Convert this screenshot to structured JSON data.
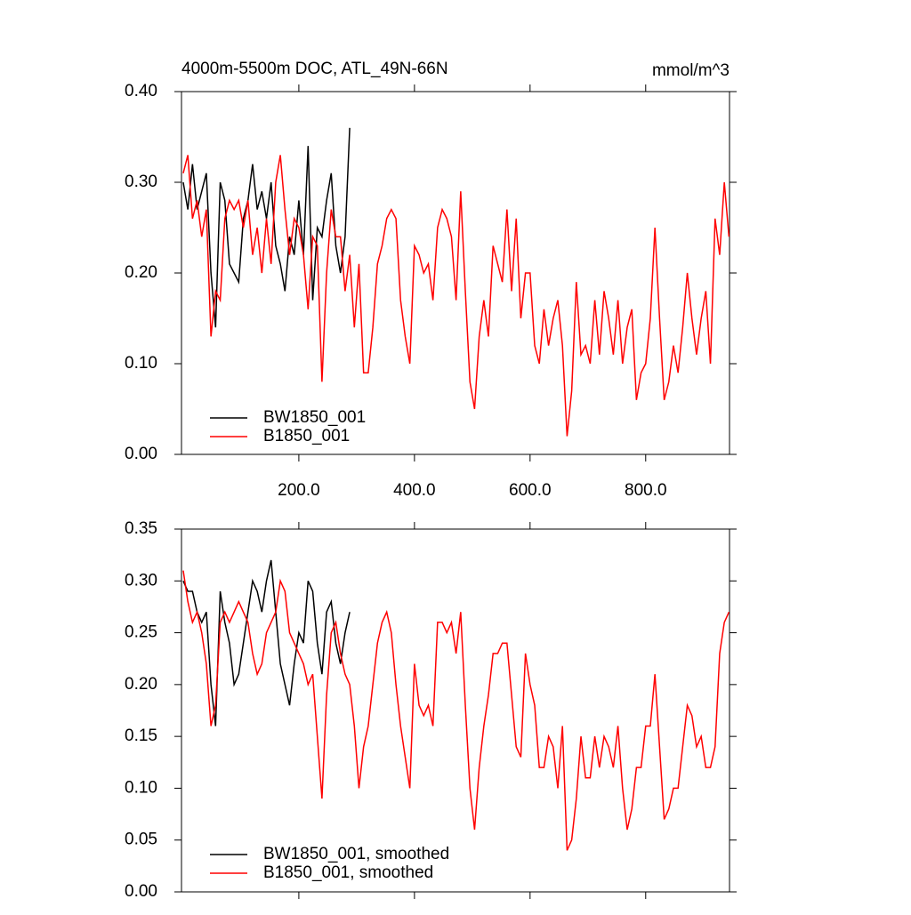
{
  "chart_data": [
    {
      "type": "line",
      "title": "4000m-5500m DOC, ATL_49N-66N",
      "units": "mmol/m^3",
      "xlim": [
        -3,
        945
      ],
      "ylim": [
        0,
        0.4
      ],
      "xticks": [
        {
          "value": 200,
          "label": "200.0"
        },
        {
          "value": 400,
          "label": "400.0"
        },
        {
          "value": 600,
          "label": "600.0"
        },
        {
          "value": 800,
          "label": "800.0"
        }
      ],
      "yticks": [
        {
          "value": 0,
          "label": "0.00"
        },
        {
          "value": 0.1,
          "label": "0.10"
        },
        {
          "value": 0.2,
          "label": "0.20"
        },
        {
          "value": 0.3,
          "label": "0.30"
        },
        {
          "value": 0.4,
          "label": "0.40"
        }
      ],
      "series": [
        {
          "name": "BW1850_001",
          "color": "#000000",
          "x": [
            0,
            8,
            16,
            24,
            32,
            40,
            48,
            56,
            64,
            72,
            80,
            88,
            96,
            104,
            112,
            120,
            128,
            136,
            144,
            152,
            160,
            168,
            176,
            184,
            192,
            200,
            208,
            216,
            224,
            232,
            240,
            248,
            256,
            264,
            272,
            280,
            288
          ],
          "values": [
            0.3,
            0.27,
            0.32,
            0.27,
            0.29,
            0.31,
            0.2,
            0.14,
            0.3,
            0.28,
            0.21,
            0.2,
            0.19,
            0.26,
            0.28,
            0.32,
            0.27,
            0.29,
            0.26,
            0.3,
            0.23,
            0.21,
            0.18,
            0.24,
            0.22,
            0.28,
            0.22,
            0.34,
            0.17,
            0.25,
            0.24,
            0.28,
            0.31,
            0.23,
            0.2,
            0.24,
            0.36
          ]
        },
        {
          "name": "B1850_001",
          "color": "#ff0000",
          "x": [
            0,
            8,
            16,
            24,
            32,
            40,
            48,
            56,
            64,
            72,
            80,
            88,
            96,
            104,
            112,
            120,
            128,
            136,
            144,
            152,
            160,
            168,
            176,
            184,
            192,
            200,
            208,
            216,
            224,
            232,
            240,
            248,
            256,
            264,
            272,
            280,
            288,
            296,
            304,
            312,
            320,
            328,
            336,
            344,
            352,
            360,
            368,
            376,
            384,
            392,
            400,
            408,
            416,
            424,
            432,
            440,
            448,
            456,
            464,
            472,
            480,
            488,
            496,
            504,
            512,
            520,
            528,
            536,
            544,
            552,
            560,
            568,
            576,
            584,
            592,
            600,
            608,
            616,
            624,
            632,
            640,
            648,
            656,
            664,
            672,
            680,
            688,
            696,
            704,
            712,
            720,
            728,
            736,
            744,
            752,
            760,
            768,
            776,
            784,
            792,
            800,
            808,
            816,
            824,
            832,
            840,
            848,
            856,
            864,
            872,
            880,
            888,
            896,
            904,
            912,
            920,
            928,
            936,
            944
          ],
          "values": [
            0.31,
            0.33,
            0.26,
            0.28,
            0.24,
            0.27,
            0.13,
            0.18,
            0.17,
            0.26,
            0.28,
            0.27,
            0.28,
            0.25,
            0.28,
            0.22,
            0.25,
            0.2,
            0.26,
            0.21,
            0.3,
            0.33,
            0.27,
            0.22,
            0.26,
            0.25,
            0.22,
            0.16,
            0.24,
            0.23,
            0.08,
            0.2,
            0.27,
            0.24,
            0.24,
            0.18,
            0.22,
            0.14,
            0.21,
            0.09,
            0.09,
            0.14,
            0.21,
            0.23,
            0.26,
            0.27,
            0.26,
            0.17,
            0.13,
            0.1,
            0.23,
            0.22,
            0.2,
            0.21,
            0.17,
            0.25,
            0.27,
            0.26,
            0.24,
            0.17,
            0.29,
            0.18,
            0.08,
            0.05,
            0.13,
            0.17,
            0.13,
            0.23,
            0.21,
            0.19,
            0.27,
            0.18,
            0.26,
            0.15,
            0.2,
            0.2,
            0.12,
            0.1,
            0.16,
            0.12,
            0.15,
            0.17,
            0.12,
            0.02,
            0.07,
            0.19,
            0.11,
            0.12,
            0.1,
            0.17,
            0.11,
            0.18,
            0.15,
            0.11,
            0.17,
            0.1,
            0.14,
            0.16,
            0.06,
            0.09,
            0.1,
            0.15,
            0.25,
            0.15,
            0.06,
            0.08,
            0.12,
            0.09,
            0.14,
            0.2,
            0.15,
            0.11,
            0.15,
            0.18,
            0.1,
            0.26,
            0.22,
            0.3,
            0.24
          ]
        }
      ]
    },
    {
      "type": "line",
      "xlim": [
        -3,
        945
      ],
      "ylim": [
        0,
        0.35
      ],
      "xticks": [
        200,
        400,
        600,
        800
      ],
      "yticks": [
        {
          "value": 0,
          "label": "0.00"
        },
        {
          "value": 0.05,
          "label": "0.05"
        },
        {
          "value": 0.1,
          "label": "0.10"
        },
        {
          "value": 0.15,
          "label": "0.15"
        },
        {
          "value": 0.2,
          "label": "0.20"
        },
        {
          "value": 0.25,
          "label": "0.25"
        },
        {
          "value": 0.3,
          "label": "0.30"
        },
        {
          "value": 0.35,
          "label": "0.35"
        }
      ],
      "series": [
        {
          "name": "BW1850_001, smoothed",
          "color": "#000000",
          "x": [
            0,
            8,
            16,
            24,
            32,
            40,
            48,
            56,
            64,
            72,
            80,
            88,
            96,
            104,
            112,
            120,
            128,
            136,
            144,
            152,
            160,
            168,
            176,
            184,
            192,
            200,
            208,
            216,
            224,
            232,
            240,
            248,
            256,
            264,
            272,
            280,
            288
          ],
          "values": [
            0.3,
            0.29,
            0.29,
            0.27,
            0.26,
            0.27,
            0.2,
            0.16,
            0.29,
            0.26,
            0.24,
            0.2,
            0.21,
            0.24,
            0.27,
            0.3,
            0.29,
            0.27,
            0.3,
            0.32,
            0.27,
            0.22,
            0.2,
            0.18,
            0.22,
            0.25,
            0.24,
            0.3,
            0.29,
            0.24,
            0.21,
            0.27,
            0.28,
            0.24,
            0.22,
            0.25,
            0.27
          ]
        },
        {
          "name": "B1850_001, smoothed",
          "color": "#ff0000",
          "x": [
            0,
            8,
            16,
            24,
            32,
            40,
            48,
            56,
            64,
            72,
            80,
            88,
            96,
            104,
            112,
            120,
            128,
            136,
            144,
            152,
            160,
            168,
            176,
            184,
            192,
            200,
            208,
            216,
            224,
            232,
            240,
            248,
            256,
            264,
            272,
            280,
            288,
            296,
            304,
            312,
            320,
            328,
            336,
            344,
            352,
            360,
            368,
            376,
            384,
            392,
            400,
            408,
            416,
            424,
            432,
            440,
            448,
            456,
            464,
            472,
            480,
            488,
            496,
            504,
            512,
            520,
            528,
            536,
            544,
            552,
            560,
            568,
            576,
            584,
            592,
            600,
            608,
            616,
            624,
            632,
            640,
            648,
            656,
            664,
            672,
            680,
            688,
            696,
            704,
            712,
            720,
            728,
            736,
            744,
            752,
            760,
            768,
            776,
            784,
            792,
            800,
            808,
            816,
            824,
            832,
            840,
            848,
            856,
            864,
            872,
            880,
            888,
            896,
            904,
            912,
            920,
            928,
            936,
            944
          ],
          "values": [
            0.31,
            0.28,
            0.26,
            0.27,
            0.25,
            0.22,
            0.16,
            0.18,
            0.26,
            0.27,
            0.26,
            0.27,
            0.28,
            0.27,
            0.26,
            0.23,
            0.21,
            0.22,
            0.25,
            0.26,
            0.27,
            0.3,
            0.29,
            0.25,
            0.24,
            0.23,
            0.22,
            0.2,
            0.21,
            0.15,
            0.09,
            0.19,
            0.25,
            0.26,
            0.23,
            0.21,
            0.2,
            0.16,
            0.1,
            0.14,
            0.16,
            0.2,
            0.24,
            0.26,
            0.27,
            0.25,
            0.2,
            0.16,
            0.13,
            0.1,
            0.22,
            0.18,
            0.17,
            0.18,
            0.16,
            0.26,
            0.26,
            0.25,
            0.26,
            0.23,
            0.27,
            0.18,
            0.1,
            0.06,
            0.12,
            0.16,
            0.19,
            0.23,
            0.23,
            0.24,
            0.24,
            0.19,
            0.14,
            0.13,
            0.23,
            0.2,
            0.18,
            0.12,
            0.12,
            0.15,
            0.14,
            0.1,
            0.16,
            0.04,
            0.05,
            0.09,
            0.15,
            0.11,
            0.11,
            0.15,
            0.12,
            0.15,
            0.14,
            0.12,
            0.16,
            0.1,
            0.06,
            0.08,
            0.12,
            0.12,
            0.16,
            0.16,
            0.21,
            0.14,
            0.07,
            0.08,
            0.1,
            0.1,
            0.14,
            0.18,
            0.17,
            0.14,
            0.15,
            0.12,
            0.12,
            0.14,
            0.23,
            0.26,
            0.27
          ]
        }
      ]
    }
  ]
}
